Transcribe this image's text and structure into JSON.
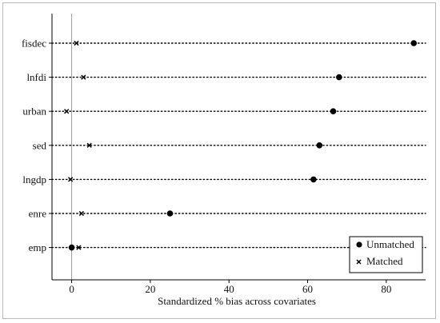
{
  "chart_data": {
    "type": "scatter",
    "xlabel": "Standardized % bias across covariates",
    "ylabel": "",
    "categories": [
      "fisdec",
      "lnfdi",
      "urban",
      "sed",
      "lngdp",
      "enre",
      "emp"
    ],
    "xlim": [
      -5,
      90
    ],
    "xticks": [
      0,
      20,
      40,
      60,
      80
    ],
    "reference_line_x": 0,
    "grid": "dotted horizontal lines at each covariate",
    "legend_position": "bottom-right",
    "series": [
      {
        "name": "Unmatched",
        "marker": "filled-circle",
        "values": [
          87,
          68,
          66.5,
          63,
          61.5,
          25,
          0
        ]
      },
      {
        "name": "Matched",
        "marker": "x",
        "values": [
          1.2,
          3,
          -1.3,
          4.5,
          -0.3,
          2.5,
          1.8
        ]
      }
    ]
  },
  "colors": {
    "marker": "#000000",
    "axis": "#000000",
    "reference_line": "#9a9a9a",
    "frame": "#b9b9b9",
    "background": "#ffffff"
  }
}
